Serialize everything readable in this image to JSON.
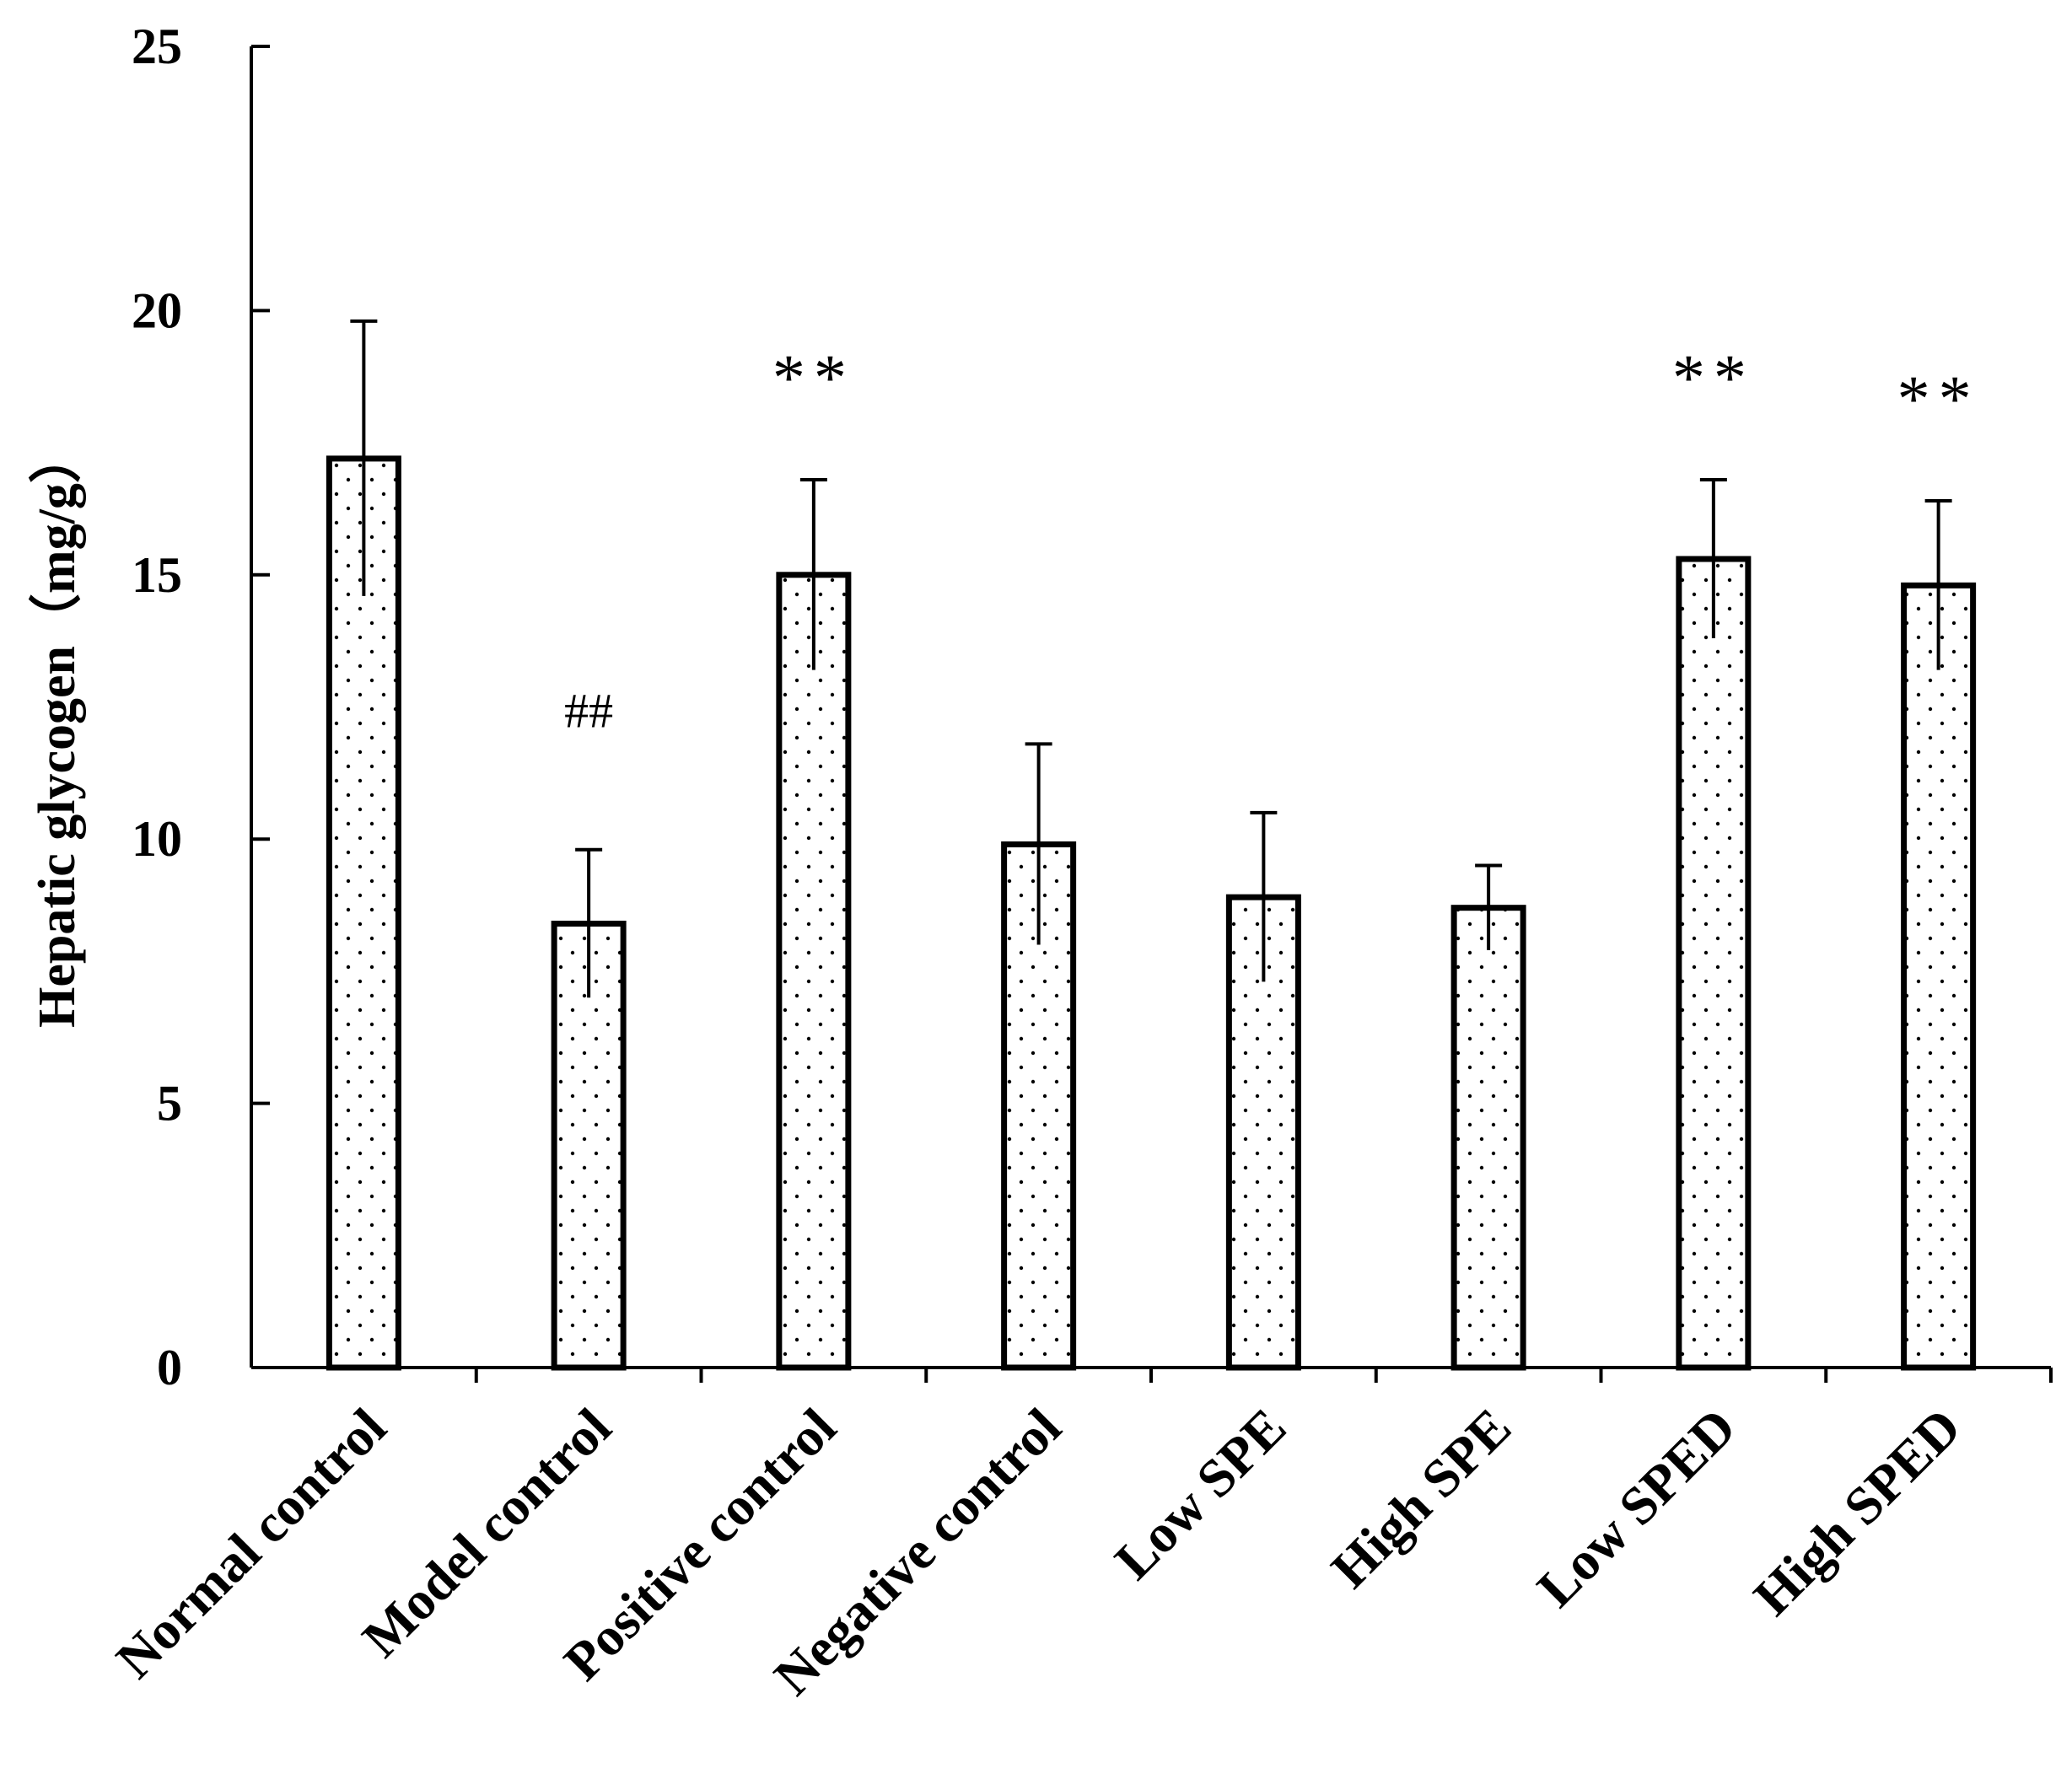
{
  "chart_data": {
    "type": "bar",
    "title": "",
    "xlabel": "",
    "ylabel": "Hepatic glycogen（mg/g）",
    "ylim": [
      0,
      25
    ],
    "yticks": [
      "0",
      "5",
      "10",
      "15",
      "20",
      "25"
    ],
    "categories": [
      "Normal control",
      "Model control",
      "Positive control",
      "Negative control",
      "Low SPE",
      "High SPE",
      "Low SPED",
      "High SPED"
    ],
    "values": [
      17.2,
      8.4,
      15.0,
      9.9,
      8.9,
      8.7,
      15.3,
      14.8
    ],
    "errors": [
      2.6,
      1.4,
      1.8,
      1.9,
      1.6,
      0.8,
      1.5,
      1.6
    ],
    "annotations": [
      "",
      "##",
      "**",
      "",
      "",
      "",
      "**",
      "**"
    ],
    "bar_fill": "dotted",
    "grid": false,
    "legend": "none",
    "colors": {
      "bar_edge": "#000000",
      "bar_fill": "#ffffff",
      "dots": "#000000"
    }
  }
}
